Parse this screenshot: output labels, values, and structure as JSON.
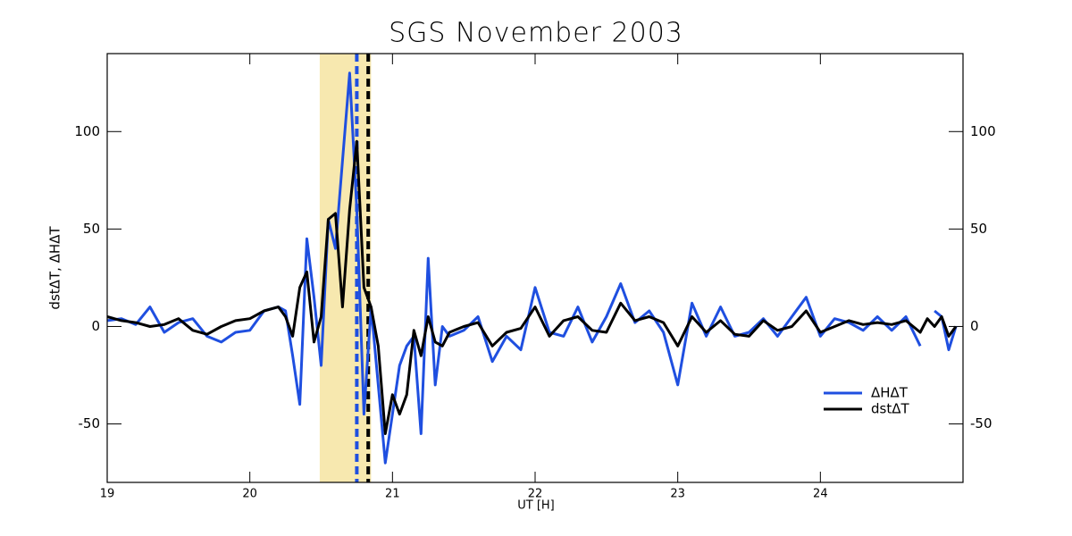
{
  "chart_data": {
    "type": "line",
    "title": "SGS November 2003",
    "x_label": "UT [H]",
    "y_label": "dstΔT, ΔHΔT",
    "x": [
      19.0,
      19.1,
      19.2,
      19.3,
      19.4,
      19.5,
      19.6,
      19.7,
      19.8,
      19.9,
      20.0,
      20.1,
      20.2,
      20.25,
      20.3,
      20.35,
      20.4,
      20.45,
      20.5,
      20.55,
      20.6,
      20.65,
      20.7,
      20.75,
      20.8,
      20.85,
      20.9,
      20.95,
      21.0,
      21.05,
      21.1,
      21.15,
      21.2,
      21.25,
      21.3,
      21.35,
      21.4,
      21.5,
      21.6,
      21.7,
      21.8,
      21.9,
      22.0,
      22.1,
      22.2,
      22.3,
      22.4,
      22.5,
      22.6,
      22.7,
      22.8,
      22.9,
      23.0,
      23.1,
      23.2,
      23.3,
      23.4,
      23.5,
      23.6,
      23.7,
      23.8,
      23.9,
      24.0,
      24.1,
      24.2,
      24.3,
      24.4,
      24.5,
      24.6,
      24.7,
      24.75,
      24.8,
      24.85,
      24.9,
      24.95
    ],
    "series": [
      {
        "name": "ΔHΔT",
        "color": "#1f4fe0",
        "values": [
          3,
          4,
          1,
          10,
          -3,
          2,
          4,
          -5,
          -8,
          -3,
          -2,
          8,
          10,
          8,
          -15,
          -40,
          45,
          15,
          -20,
          55,
          40,
          85,
          130,
          60,
          -45,
          10,
          -30,
          -70,
          -45,
          -20,
          -10,
          -5,
          -55,
          35,
          -30,
          0,
          -5,
          -2,
          5,
          -18,
          -5,
          -12,
          20,
          -3,
          -5,
          10,
          -8,
          5,
          22,
          2,
          8,
          -3,
          -30,
          12,
          -5,
          10,
          -5,
          -3,
          4,
          -5,
          5,
          15,
          -5,
          4,
          2,
          -2,
          5,
          -2,
          5,
          -10,
          null,
          8,
          5,
          -12,
          0
        ]
      },
      {
        "name": "dstΔT",
        "color": "#000000",
        "values": [
          5,
          3,
          2,
          0,
          1,
          4,
          -2,
          -4,
          0,
          3,
          4,
          8,
          10,
          5,
          -5,
          20,
          28,
          -8,
          5,
          55,
          58,
          10,
          60,
          95,
          20,
          10,
          -10,
          -55,
          -35,
          -45,
          -35,
          -2,
          -15,
          5,
          -8,
          -10,
          -3,
          0,
          2,
          -10,
          -3,
          -1,
          10,
          -5,
          3,
          5,
          -2,
          -3,
          12,
          3,
          5,
          2,
          -10,
          5,
          -3,
          3,
          -4,
          -5,
          3,
          -2,
          0,
          8,
          -3,
          0,
          3,
          1,
          2,
          1,
          3,
          -3,
          4,
          0,
          5,
          -5,
          0
        ]
      }
    ],
    "xlim": [
      19,
      25
    ],
    "xticks": [
      19,
      20,
      21,
      22,
      23,
      24
    ],
    "ylim": [
      -80,
      140
    ],
    "yticks": [
      -50,
      0,
      50,
      100
    ],
    "shaded_span": [
      20.49,
      20.85
    ],
    "shade_color": "#f2d87a",
    "vlines": [
      {
        "x": 20.75,
        "color": "#1f4fe0"
      },
      {
        "x": 20.83,
        "color": "#000000"
      }
    ],
    "legend": "lower right"
  }
}
